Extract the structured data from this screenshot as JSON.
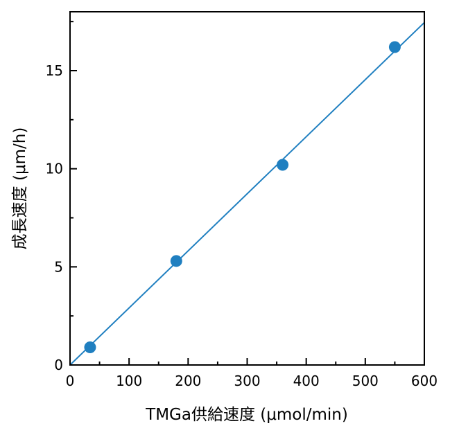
{
  "chart_data": {
    "type": "scatter",
    "title": "",
    "xlabel": "TMGa供給速度 (μmol/min)",
    "ylabel": "成長速度 (μm/h)",
    "xlim": [
      0,
      600
    ],
    "ylim": [
      0,
      18
    ],
    "xticks": [
      0,
      100,
      200,
      300,
      400,
      500,
      600
    ],
    "yticks": [
      0,
      5,
      10,
      15
    ],
    "grid": false,
    "legend": "none",
    "series": [
      {
        "x": [
          34,
          180,
          360,
          550
        ],
        "y": [
          0.9,
          5.3,
          10.2,
          16.2
        ],
        "color": "#1f7fc0",
        "marker": "circle"
      }
    ],
    "fit_line": {
      "x": [
        0,
        600
      ],
      "y": [
        0,
        17.45
      ],
      "color": "#1f7fc0"
    }
  }
}
